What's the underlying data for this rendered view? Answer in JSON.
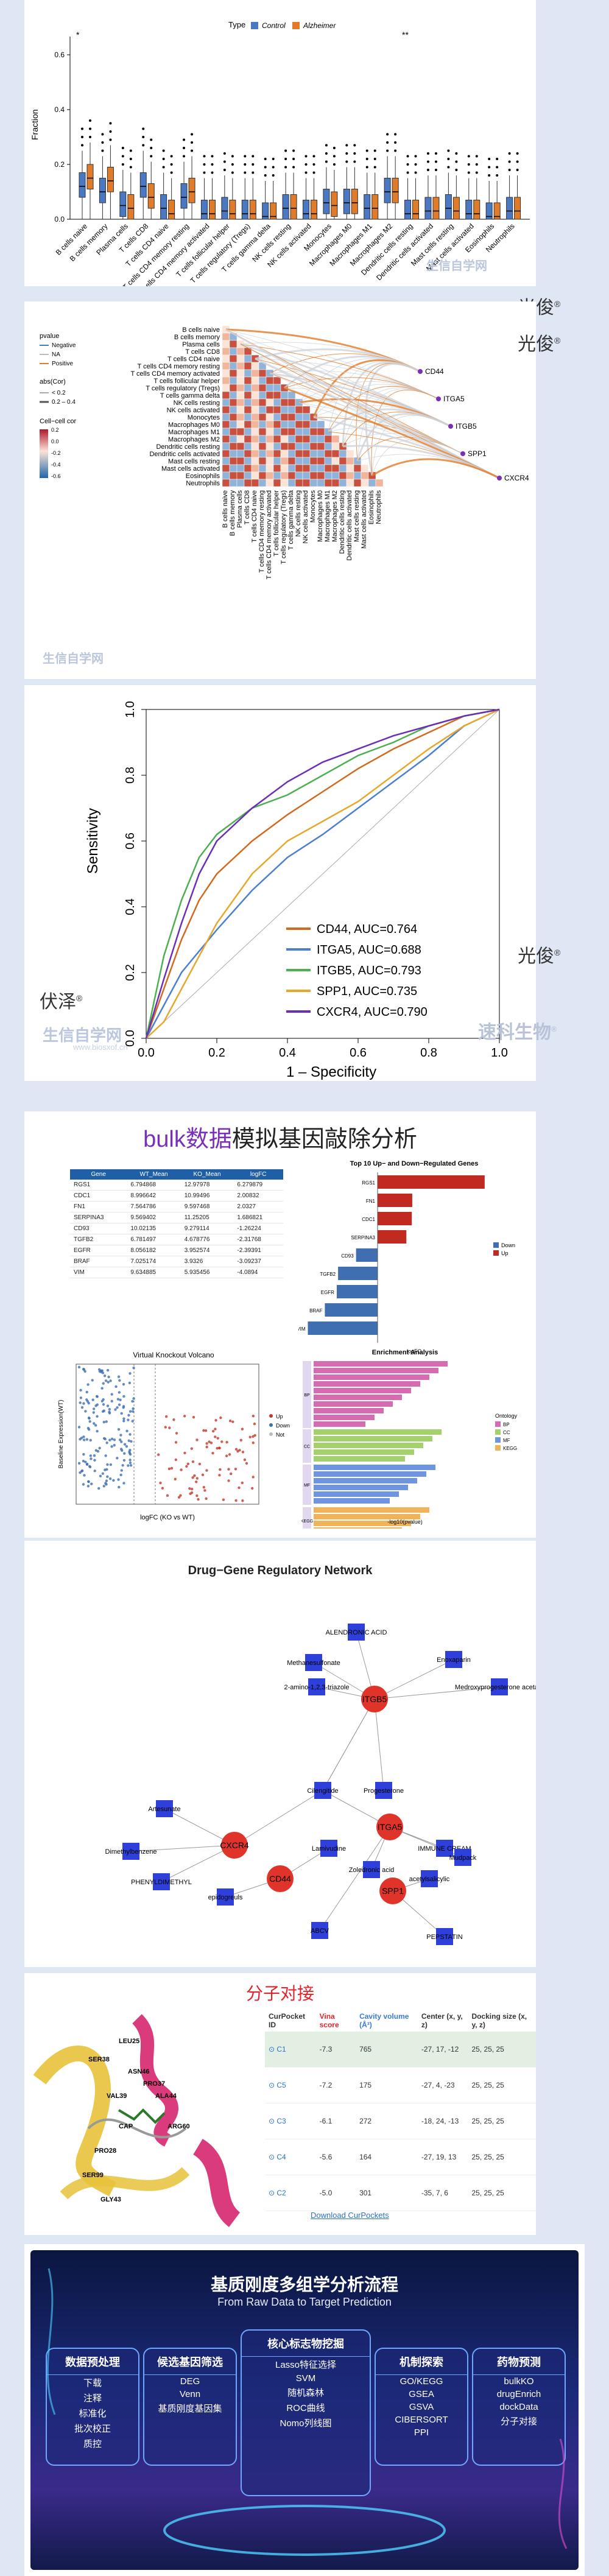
{
  "colors": {
    "control": "#4a78c2",
    "alzheimer": "#e07b2a",
    "accent_purple": "#7a2fb8",
    "red": "#e0242b",
    "blue_bar": "#3f6fb0",
    "red_bar": "#c02a20"
  },
  "watermarks": {
    "guangjun": "光俊",
    "fuze": "伏泽",
    "sukeshengwu": "速科生物",
    "shengxinxue": "生信自学网",
    "url": "www.biosxof.cn",
    "reg": "®"
  },
  "panel1": {
    "legend_title": "Type",
    "legend_items": [
      "Control",
      "Alzheimer"
    ],
    "ylabel": "Fraction",
    "yticks": [
      "0.0",
      "0.2",
      "0.4",
      "0.6"
    ],
    "sig": [
      "*",
      "**"
    ],
    "categories": [
      "B cells naive",
      "B cells memory",
      "Plasma cells",
      "T cells CD8",
      "T cells CD4 naive",
      "T cells CD4 memory resting",
      "T cells CD4 memory activated",
      "T cells follicular helper",
      "T cells regulatory (Tregs)",
      "T cells gamma delta",
      "NK cells resting",
      "NK cells activated",
      "Monocytes",
      "Macrophages M0",
      "Macrophages M1",
      "Macrophages M2",
      "Dendritic cells resting",
      "Dendritic cells activated",
      "Mast cells resting",
      "Mast cells activated",
      "Eosinophils",
      "Neutrophils"
    ]
  },
  "panel2": {
    "legend": {
      "pvalue_title": "pvalue",
      "pvalue_items": [
        "Negative",
        "NA",
        "Positive"
      ],
      "abs_title": "abs(Cor)",
      "abs_items": [
        "< 0.2",
        "0.2 – 0.4"
      ],
      "cor_title": "Cell−cell cor",
      "cor_ticks": [
        "0.2",
        "0.0",
        "-0.2",
        "-0.4",
        "-0.6"
      ]
    },
    "genes": [
      "CD44",
      "ITGA5",
      "ITGB5",
      "SPP1",
      "CXCR4"
    ]
  },
  "panel3": {
    "chart_data": {
      "type": "line",
      "xlabel": "1 – Specificity",
      "ylabel": "Sensitivity",
      "xlim": [
        0,
        1
      ],
      "ylim": [
        0,
        1
      ],
      "ticks": [
        "0.0",
        "0.2",
        "0.4",
        "0.6",
        "0.8",
        "1.0"
      ],
      "series": [
        {
          "name": "CD44, AUC=0.764",
          "color": "#d2691e",
          "x": [
            0,
            0.05,
            0.1,
            0.15,
            0.2,
            0.3,
            0.4,
            0.5,
            0.6,
            0.7,
            0.8,
            0.9,
            1
          ],
          "y": [
            0,
            0.15,
            0.3,
            0.42,
            0.5,
            0.6,
            0.68,
            0.75,
            0.82,
            0.88,
            0.93,
            0.98,
            1
          ]
        },
        {
          "name": "ITGA5, AUC=0.688",
          "color": "#4a7fd4",
          "x": [
            0,
            0.05,
            0.1,
            0.2,
            0.3,
            0.4,
            0.5,
            0.6,
            0.7,
            0.8,
            0.9,
            1
          ],
          "y": [
            0,
            0.1,
            0.2,
            0.33,
            0.45,
            0.55,
            0.62,
            0.7,
            0.78,
            0.86,
            0.95,
            1
          ]
        },
        {
          "name": "ITGB5, AUC=0.793",
          "color": "#4caf50",
          "x": [
            0,
            0.05,
            0.1,
            0.15,
            0.2,
            0.3,
            0.4,
            0.5,
            0.6,
            0.7,
            0.8,
            0.9,
            1
          ],
          "y": [
            0,
            0.25,
            0.42,
            0.55,
            0.62,
            0.7,
            0.74,
            0.8,
            0.86,
            0.9,
            0.95,
            0.98,
            1
          ]
        },
        {
          "name": "SPP1, AUC=0.735",
          "color": "#e8a62a",
          "x": [
            0,
            0.05,
            0.1,
            0.2,
            0.3,
            0.4,
            0.5,
            0.6,
            0.7,
            0.8,
            0.9,
            1
          ],
          "y": [
            0,
            0.05,
            0.15,
            0.35,
            0.5,
            0.6,
            0.66,
            0.72,
            0.8,
            0.88,
            0.95,
            1
          ]
        },
        {
          "name": "CXCR4, AUC=0.790",
          "color": "#6a2fb5",
          "x": [
            0,
            0.05,
            0.1,
            0.15,
            0.2,
            0.3,
            0.4,
            0.5,
            0.6,
            0.7,
            0.8,
            0.9,
            1
          ],
          "y": [
            0,
            0.18,
            0.35,
            0.5,
            0.6,
            0.7,
            0.78,
            0.84,
            0.88,
            0.92,
            0.95,
            0.98,
            1
          ]
        }
      ]
    }
  },
  "panel4": {
    "title_bulk": "bulk",
    "title_data": "数据",
    "title_rest": "模拟基因敲除分析",
    "table": {
      "headers": [
        "Gene",
        "WT_Mean",
        "KO_Mean",
        "logFC"
      ],
      "rows": [
        [
          "RGS1",
          "6.794868",
          "12.97978",
          "6.279879"
        ],
        [
          "CDC1",
          "8.996642",
          "10.99496",
          "2.00832"
        ],
        [
          "FN1",
          "7.564786",
          "9.597468",
          "2.0327"
        ],
        [
          "SERPINA3",
          "9.569402",
          "11.25205",
          "1.686821"
        ],
        [
          "CD93",
          "10.02135",
          "9.279114",
          "-1.26224"
        ],
        [
          "TGFB2",
          "6.781497",
          "4.678776",
          "-2.31768"
        ],
        [
          "EGFR",
          "8.056182",
          "3.952574",
          "-2.39391"
        ],
        [
          "BRAF",
          "7.025174",
          "3.9326",
          "-3.09237"
        ],
        [
          "VIM",
          "9.634885",
          "5.935456",
          "-4.0894"
        ]
      ]
    },
    "bar_title": "Top 10 Up− and Down−Regulated Genes",
    "bar_xlabel": "logFC",
    "bar_legend": [
      "Down",
      "Up"
    ],
    "volcano_title": "Virtual Knockout Volcano",
    "volcano_xlabel": "logFC (KO vs WT)",
    "volcano_ylabel": "Baseline Expression(WT)",
    "volcano_legend": [
      "Up",
      "Down",
      "Not"
    ],
    "enrich_title": "Enrichment Analysis",
    "enrich_xlabel": "-log10(pvalue)",
    "enrich_legend_title": "Ontology",
    "enrich_legend": [
      "BP",
      "CC",
      "MF",
      "KEGG"
    ],
    "enrich_groups": [
      "BP",
      "CC",
      "MF",
      "KEGG"
    ]
  },
  "panel5": {
    "title": "Drug−Gene Regulatory Network",
    "genes": [
      "ITGB5",
      "CXCR4",
      "CD44",
      "ITGA5",
      "SPP1"
    ],
    "drugs": [
      "Methanesulfonate",
      "ALENDRONIC ACID",
      "Enoxaparin",
      "2-amino-1,2,3-triazole",
      "Medroxyprogesterone acetate",
      "Progesterone",
      "Cilengitide",
      "Artesunate",
      "Dimethylbenzene",
      "PHENYLDIMETHYL",
      "Lamivudine",
      "epidogreuls",
      "IMMUNE CREAM",
      "Zoledronic acid",
      "ABCV",
      "Mudpack",
      "acetylsalicylic",
      "PEPSTATIN"
    ]
  },
  "panel6": {
    "title": "分子对接",
    "residues": [
      "LEU25",
      "SER38",
      "ASN46",
      "PRO37",
      "VAL39",
      "ALA44",
      "CAP",
      "PRO28",
      "ARG60",
      "SER99",
      "GLY43"
    ],
    "headers": {
      "pocket": "CurPocket ID",
      "vina": "Vina score",
      "cavity": "Cavity volume (Å³)",
      "center": "Center (x, y, z)",
      "size": "Docking size (x, y, z)"
    },
    "rows": [
      {
        "id": "C1",
        "vina": "-7.3",
        "cavity": "765",
        "center": "-27, 17, -12",
        "size": "25, 25, 25"
      },
      {
        "id": "C5",
        "vina": "-7.2",
        "cavity": "175",
        "center": "-27, 4, -23",
        "size": "25, 25, 25"
      },
      {
        "id": "C3",
        "vina": "-6.1",
        "cavity": "272",
        "center": "-18, 24, -13",
        "size": "25, 25, 25"
      },
      {
        "id": "C4",
        "vina": "-5.6",
        "cavity": "164",
        "center": "-27, 19, 13",
        "size": "25, 25, 25"
      },
      {
        "id": "C2",
        "vina": "-5.0",
        "cavity": "301",
        "center": "-35, 7, 6",
        "size": "25, 25, 25"
      }
    ],
    "download": "Download CurPockets"
  },
  "panel7": {
    "title": "基质刚度多组学分析流程",
    "subtitle": "From Raw Data to Target Prediction",
    "boxes": [
      {
        "title": "数据预处理",
        "items": [
          "下载",
          "注释",
          "标准化",
          "批次校正",
          "质控"
        ]
      },
      {
        "title": "候选基因筛选",
        "items": [
          "DEG",
          "Venn",
          "基质刚度基因集"
        ]
      },
      {
        "title": "核心标志物挖掘",
        "items": [
          "Lasso特征选择",
          "SVM",
          "随机森林",
          "ROC曲线",
          "Nomo列线图"
        ]
      },
      {
        "title": "机制探索",
        "items": [
          "GO/KEGG",
          "GSEA",
          "GSVA",
          "CIBERSORT",
          "PPI"
        ]
      },
      {
        "title": "药物预测",
        "items": [
          "bulkKO",
          "drugEnrich",
          "dockData",
          "分子对接"
        ]
      }
    ]
  }
}
